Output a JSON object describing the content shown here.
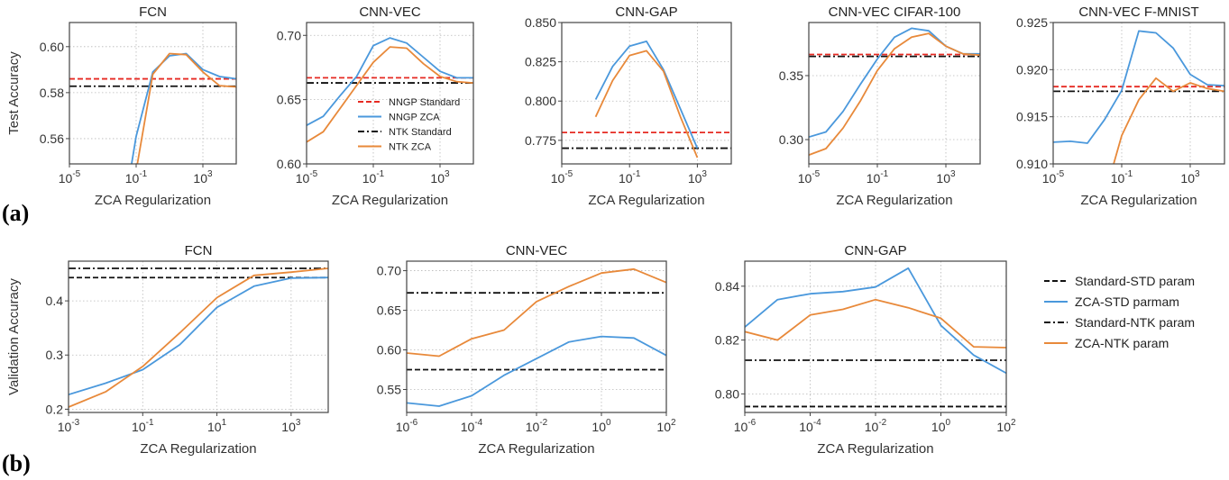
{
  "figure_labels": {
    "a": "(a)",
    "b": "(b)"
  },
  "colors": {
    "blue": "#4a98dc",
    "orange": "#e8893a",
    "red": "#e62a22",
    "black": "#111111",
    "axis": "#444444",
    "grid": "#b8b8b8",
    "text": "#333333"
  },
  "legend_a": [
    {
      "label": "NNGP Standard",
      "color": "#e62a22",
      "style": "dashed"
    },
    {
      "label": "NNGP ZCA",
      "color": "#4a98dc",
      "style": "solid"
    },
    {
      "label": "NTK Standard",
      "color": "#111111",
      "style": "dashdot"
    },
    {
      "label": "NTK ZCA",
      "color": "#e8893a",
      "style": "solid"
    }
  ],
  "legend_b": [
    {
      "label": "Standard-STD param",
      "color": "#111111",
      "style": "dashed"
    },
    {
      "label": "ZCA-STD parmam",
      "color": "#4a98dc",
      "style": "solid"
    },
    {
      "label": "Standard-NTK param",
      "color": "#111111",
      "style": "dashdot"
    },
    {
      "label": "ZCA-NTK param",
      "color": "#e8893a",
      "style": "solid"
    }
  ],
  "chart_data": [
    {
      "type": "line",
      "row": "a",
      "title": "FCN",
      "xlabel": "ZCA Regularization",
      "ylabel": "Test Accuracy",
      "xscale": "log",
      "xlim": [
        1e-05,
        100000.0
      ],
      "xticks": [
        1e-05,
        0.1,
        1000.0
      ],
      "ylim": [
        0.549,
        0.6105
      ],
      "yticks": [
        0.56,
        0.58,
        0.6
      ],
      "ytick_labels": [
        "0.56",
        "0.58",
        "0.60"
      ],
      "grid": true,
      "series": [
        {
          "name": "NNGP ZCA",
          "color": "#4a98dc",
          "style": "solid",
          "x": [
            0.01,
            0.1,
            1.0,
            10.0,
            100.0,
            1000.0,
            10000.0,
            100000.0
          ],
          "y": [
            0.517,
            0.561,
            0.589,
            0.596,
            0.597,
            0.59,
            0.587,
            0.586
          ]
        },
        {
          "name": "NTK ZCA",
          "color": "#e8893a",
          "style": "solid",
          "x": [
            0.01,
            0.1,
            1.0,
            10.0,
            100.0,
            1000.0,
            10000.0,
            100000.0
          ],
          "y": [
            0.5,
            0.546,
            0.588,
            0.597,
            0.5965,
            0.589,
            0.583,
            0.5825
          ]
        }
      ],
      "hlines": [
        {
          "name": "NNGP Standard",
          "color": "#e62a22",
          "style": "dashed",
          "y": 0.586
        },
        {
          "name": "NTK Standard",
          "color": "#111111",
          "style": "dashdot",
          "y": 0.5828
        }
      ]
    },
    {
      "type": "line",
      "row": "a",
      "title": "CNN-VEC",
      "xlabel": "ZCA Regularization",
      "ylabel": "",
      "xscale": "log",
      "xlim": [
        1e-05,
        100000.0
      ],
      "xticks": [
        1e-05,
        0.1,
        1000.0
      ],
      "ylim": [
        0.6,
        0.71
      ],
      "yticks": [
        0.6,
        0.65,
        0.7
      ],
      "ytick_labels": [
        "0.60",
        "0.65",
        "0.70"
      ],
      "grid": true,
      "legend": "center-right",
      "series": [
        {
          "name": "NNGP ZCA",
          "color": "#4a98dc",
          "style": "solid",
          "x": [
            1e-05,
            0.0001,
            0.001,
            0.01,
            0.1,
            1.0,
            10.0,
            100.0,
            1000.0,
            10000.0,
            100000.0
          ],
          "y": [
            0.63,
            0.637,
            0.653,
            0.668,
            0.692,
            0.698,
            0.694,
            0.683,
            0.672,
            0.667,
            0.667
          ]
        },
        {
          "name": "NTK ZCA",
          "color": "#e8893a",
          "style": "solid",
          "x": [
            1e-05,
            0.0001,
            0.001,
            0.01,
            0.1,
            1.0,
            10.0,
            100.0,
            1000.0,
            10000.0,
            100000.0
          ],
          "y": [
            0.617,
            0.625,
            0.643,
            0.661,
            0.679,
            0.691,
            0.69,
            0.678,
            0.668,
            0.664,
            0.663
          ]
        }
      ],
      "hlines": [
        {
          "name": "NNGP Standard",
          "color": "#e62a22",
          "style": "dashed",
          "y": 0.667
        },
        {
          "name": "NTK Standard",
          "color": "#111111",
          "style": "dashdot",
          "y": 0.663
        }
      ]
    },
    {
      "type": "line",
      "row": "a",
      "title": "CNN-GAP",
      "xlabel": "ZCA Regularization",
      "ylabel": "",
      "xscale": "log",
      "xlim": [
        1e-05,
        100000.0
      ],
      "xticks": [
        1e-05,
        0.1,
        1000.0
      ],
      "ylim": [
        0.76,
        0.85
      ],
      "yticks": [
        0.775,
        0.8,
        0.825,
        0.85
      ],
      "ytick_labels": [
        "0.775",
        "0.800",
        "0.825",
        "0.850"
      ],
      "grid": true,
      "series": [
        {
          "name": "NNGP ZCA",
          "color": "#4a98dc",
          "style": "solid",
          "x": [
            0.001,
            0.01,
            0.1,
            1.0,
            10.0,
            100.0,
            1000.0
          ],
          "y": [
            0.801,
            0.822,
            0.835,
            0.838,
            0.82,
            0.795,
            0.77
          ]
        },
        {
          "name": "NTK ZCA",
          "color": "#e8893a",
          "style": "solid",
          "x": [
            0.001,
            0.01,
            0.1,
            1.0,
            10.0,
            100.0,
            1000.0
          ],
          "y": [
            0.79,
            0.813,
            0.829,
            0.832,
            0.819,
            0.79,
            0.764
          ]
        }
      ],
      "hlines": [
        {
          "name": "NNGP Standard",
          "color": "#e62a22",
          "style": "dashed",
          "y": 0.78
        },
        {
          "name": "NTK Standard",
          "color": "#111111",
          "style": "dashdot",
          "y": 0.77
        }
      ]
    },
    {
      "type": "line",
      "row": "a",
      "title": "CNN-VEC CIFAR-100",
      "xlabel": "ZCA Regularization",
      "ylabel": "",
      "xscale": "log",
      "xlim": [
        1e-05,
        100000.0
      ],
      "xticks": [
        1e-05,
        0.1,
        1000.0
      ],
      "ylim": [
        0.281,
        0.3915
      ],
      "yticks": [
        0.3,
        0.35
      ],
      "ytick_labels": [
        "0.30",
        "0.35"
      ],
      "grid": true,
      "series": [
        {
          "name": "NNGP ZCA",
          "color": "#4a98dc",
          "style": "solid",
          "x": [
            1e-05,
            0.0001,
            0.001,
            0.01,
            0.1,
            1.0,
            10.0,
            100.0,
            1000.0,
            10000.0,
            100000.0
          ],
          "y": [
            0.302,
            0.306,
            0.322,
            0.343,
            0.363,
            0.38,
            0.387,
            0.385,
            0.373,
            0.367,
            0.367
          ]
        },
        {
          "name": "NTK ZCA",
          "color": "#e8893a",
          "style": "solid",
          "x": [
            1e-05,
            0.0001,
            0.001,
            0.01,
            0.1,
            1.0,
            10.0,
            100.0,
            1000.0,
            10000.0,
            100000.0
          ],
          "y": [
            0.288,
            0.293,
            0.309,
            0.33,
            0.354,
            0.371,
            0.38,
            0.383,
            0.373,
            0.367,
            0.366
          ]
        }
      ],
      "hlines": [
        {
          "name": "NNGP Standard",
          "color": "#e62a22",
          "style": "dashed",
          "y": 0.3665
        },
        {
          "name": "NTK Standard",
          "color": "#111111",
          "style": "dashdot",
          "y": 0.365
        }
      ]
    },
    {
      "type": "line",
      "row": "a",
      "title": "CNN-VEC F-MNIST",
      "xlabel": "ZCA Regularization",
      "ylabel": "",
      "xscale": "log",
      "xlim": [
        1e-05,
        100000.0
      ],
      "xticks": [
        1e-05,
        0.1,
        1000.0
      ],
      "ylim": [
        0.91,
        0.925
      ],
      "yticks": [
        0.91,
        0.915,
        0.92,
        0.925
      ],
      "ytick_labels": [
        "0.910",
        "0.915",
        "0.920",
        "0.925"
      ],
      "grid": true,
      "series": [
        {
          "name": "NNGP ZCA",
          "color": "#4a98dc",
          "style": "solid",
          "x": [
            1e-05,
            0.0001,
            0.001,
            0.01,
            0.1,
            1.0,
            10.0,
            100.0,
            1000.0,
            10000.0,
            100000.0
          ],
          "y": [
            0.9123,
            0.9124,
            0.9122,
            0.9147,
            0.9178,
            0.9241,
            0.9239,
            0.9223,
            0.9195,
            0.9184,
            0.9183
          ]
        },
        {
          "name": "NTK ZCA",
          "color": "#e8893a",
          "style": "solid",
          "x": [
            0.01,
            0.1,
            1.0,
            10.0,
            100.0,
            1000.0,
            10000.0,
            100000.0
          ],
          "y": [
            0.9066,
            0.913,
            0.9168,
            0.9191,
            0.9177,
            0.9186,
            0.918,
            0.9177
          ]
        }
      ],
      "hlines": [
        {
          "name": "NNGP Standard",
          "color": "#e62a22",
          "style": "dashed",
          "y": 0.9182
        },
        {
          "name": "NTK Standard",
          "color": "#111111",
          "style": "dashdot",
          "y": 0.9177
        }
      ]
    },
    {
      "type": "line",
      "row": "b",
      "title": "FCN",
      "xlabel": "ZCA Regularization",
      "ylabel": "Validation Accuracy",
      "xscale": "log",
      "xlim": [
        0.001,
        10000.0
      ],
      "xticks": [
        0.001,
        0.1,
        10.0,
        1000.0
      ],
      "ylim": [
        0.194,
        0.4733
      ],
      "yticks": [
        0.2,
        0.3,
        0.4
      ],
      "ytick_labels": [
        "0.2",
        "0.3",
        "0.4"
      ],
      "grid": true,
      "series": [
        {
          "name": "ZCA-STD parmam",
          "color": "#4a98dc",
          "style": "solid",
          "x": [
            0.001,
            0.01,
            0.1,
            1.0,
            10.0,
            100.0,
            1000.0,
            10000.0
          ],
          "y": [
            0.227,
            0.248,
            0.273,
            0.319,
            0.388,
            0.427,
            0.442,
            0.443
          ]
        },
        {
          "name": "ZCA-NTK param",
          "color": "#e8893a",
          "style": "solid",
          "x": [
            0.001,
            0.01,
            0.1,
            1.0,
            10.0,
            100.0,
            1000.0,
            10000.0
          ],
          "y": [
            0.204,
            0.232,
            0.279,
            0.341,
            0.406,
            0.447,
            0.453,
            0.46
          ]
        }
      ],
      "hlines": [
        {
          "name": "Standard-STD param",
          "color": "#111111",
          "style": "dashed",
          "y": 0.443
        },
        {
          "name": "Standard-NTK param",
          "color": "#111111",
          "style": "dashdot",
          "y": 0.46
        }
      ]
    },
    {
      "type": "line",
      "row": "b",
      "title": "CNN-VEC",
      "xlabel": "ZCA Regularization",
      "ylabel": "",
      "xscale": "log",
      "xlim": [
        1e-06,
        100.0
      ],
      "xticks": [
        1e-06,
        0.0001,
        0.01,
        1.0,
        100.0
      ],
      "ylim": [
        0.521,
        0.712
      ],
      "yticks": [
        0.55,
        0.6,
        0.65,
        0.7
      ],
      "ytick_labels": [
        "0.55",
        "0.60",
        "0.65",
        "0.70"
      ],
      "grid": true,
      "series": [
        {
          "name": "ZCA-STD parmam",
          "color": "#4a98dc",
          "style": "solid",
          "x": [
            1e-06,
            1e-05,
            0.0001,
            0.001,
            0.01,
            0.1,
            1.0,
            10.0,
            100.0
          ],
          "y": [
            0.533,
            0.529,
            0.542,
            0.568,
            0.589,
            0.61,
            0.617,
            0.615,
            0.593
          ]
        },
        {
          "name": "ZCA-NTK param",
          "color": "#e8893a",
          "style": "solid",
          "x": [
            1e-06,
            1e-05,
            0.0001,
            0.001,
            0.01,
            0.1,
            1.0,
            10.0,
            100.0
          ],
          "y": [
            0.596,
            0.592,
            0.614,
            0.625,
            0.661,
            0.68,
            0.697,
            0.702,
            0.685
          ]
        }
      ],
      "hlines": [
        {
          "name": "Standard-STD param",
          "color": "#111111",
          "style": "dashed",
          "y": 0.575
        },
        {
          "name": "Standard-NTK param",
          "color": "#111111",
          "style": "dashdot",
          "y": 0.672
        }
      ]
    },
    {
      "type": "line",
      "row": "b",
      "title": "CNN-GAP",
      "xlabel": "ZCA Regularization",
      "ylabel": "",
      "xscale": "log",
      "xlim": [
        1e-06,
        100.0
      ],
      "xticks": [
        1e-06,
        0.0001,
        0.01,
        1.0,
        100.0
      ],
      "ylim": [
        0.7931,
        0.8493
      ],
      "yticks": [
        0.8,
        0.82,
        0.84
      ],
      "ytick_labels": [
        "0.80",
        "0.82",
        "0.84"
      ],
      "grid": true,
      "legend": "outside-right",
      "series": [
        {
          "name": "ZCA-STD parmam",
          "color": "#4a98dc",
          "style": "solid",
          "x": [
            1e-06,
            1e-05,
            0.0001,
            0.001,
            0.01,
            0.1,
            1.0,
            10.0,
            100.0
          ],
          "y": [
            0.8248,
            0.835,
            0.8372,
            0.838,
            0.8397,
            0.8467,
            0.8254,
            0.8144,
            0.8077
          ]
        },
        {
          "name": "ZCA-NTK param",
          "color": "#e8893a",
          "style": "solid",
          "x": [
            1e-06,
            1e-05,
            0.0001,
            0.001,
            0.01,
            0.1,
            1.0,
            10.0,
            100.0
          ],
          "y": [
            0.8231,
            0.82,
            0.8293,
            0.8314,
            0.835,
            0.832,
            0.8281,
            0.8175,
            0.8172
          ]
        }
      ],
      "hlines": [
        {
          "name": "Standard-STD param",
          "color": "#111111",
          "style": "dashed",
          "y": 0.7953
        },
        {
          "name": "Standard-NTK param",
          "color": "#111111",
          "style": "dashdot",
          "y": 0.8125
        }
      ]
    }
  ]
}
